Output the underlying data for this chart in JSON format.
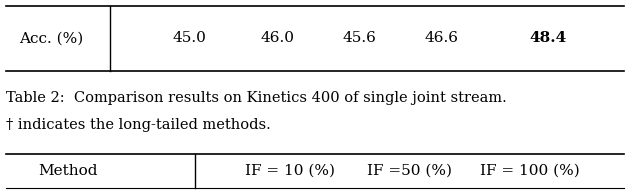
{
  "top_row_label": "Acc. (%)",
  "top_row_values": [
    "45.0",
    "46.0",
    "45.6",
    "46.6"
  ],
  "top_row_bold": "48.4",
  "caption_line1": "Table 2:  Comparison results on Kinetics 400 of single joint stream.",
  "caption_line2": "† indicates the long-tailed methods.",
  "header_col0": "Method",
  "header_col1": "IF = 10 (%)",
  "header_col2": "IF =50 (%)",
  "header_col3": "IF = 100 (%)",
  "font_size": 11,
  "bg_color": "#ffffff"
}
